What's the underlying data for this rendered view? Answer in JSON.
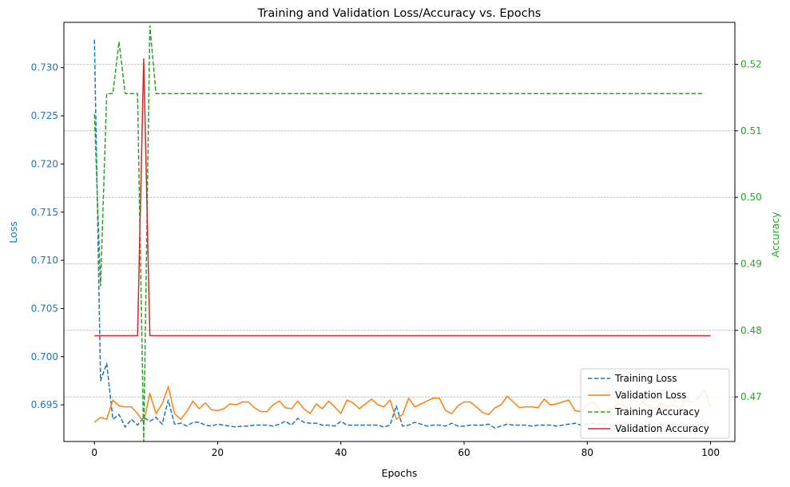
{
  "chart_data": {
    "type": "line",
    "title": "Training and Validation Loss/Accuracy vs. Epochs",
    "xlabel": "Epochs",
    "ylabel_left": "Loss",
    "ylabel_right": "Accuracy",
    "x_ticks": [
      0,
      20,
      40,
      60,
      80,
      100
    ],
    "y_left_ticks": [
      0.695,
      0.7,
      0.705,
      0.71,
      0.715,
      0.72,
      0.725,
      0.73
    ],
    "y_left_tick_labels": [
      "0.695",
      "0.700",
      "0.705",
      "0.710",
      "0.715",
      "0.720",
      "0.725",
      "0.730"
    ],
    "y_right_ticks": [
      0.47,
      0.48,
      0.49,
      0.5,
      0.51,
      0.52
    ],
    "y_right_tick_labels": [
      "0.47",
      "0.48",
      "0.49",
      "0.50",
      "0.51",
      "0.52"
    ],
    "xlim": [
      -4.95,
      103.95
    ],
    "ylim_left": [
      0.6912,
      0.7347
    ],
    "ylim_right": [
      0.4633,
      0.5263
    ],
    "grid": "right-axis horizontal",
    "legend_position": "lower-right",
    "colors": {
      "left_axis": "#1f77b4",
      "right_axis": "#2ca02c",
      "grid": "#b0b0b0"
    },
    "series": [
      {
        "name": "Training Loss",
        "axis": "left",
        "color": "#1f77b4",
        "dash": "dashed",
        "x": [
          0,
          1,
          2,
          3,
          4,
          5,
          6,
          7,
          8,
          9,
          10,
          11,
          12,
          13,
          14,
          15,
          16,
          17,
          18,
          19,
          20,
          21,
          22,
          23,
          24,
          25,
          26,
          27,
          28,
          29,
          30,
          31,
          32,
          33,
          34,
          35,
          36,
          37,
          38,
          39,
          40,
          41,
          42,
          43,
          44,
          45,
          46,
          47,
          48,
          49,
          50,
          51,
          52,
          53,
          54,
          55,
          56,
          57,
          58,
          59,
          60,
          61,
          62,
          63,
          64,
          65,
          66,
          67,
          68,
          69,
          70,
          71,
          72,
          73,
          74,
          75,
          76,
          77,
          78,
          79,
          80,
          81,
          82,
          83,
          84,
          85,
          86,
          87,
          88,
          89,
          90,
          91,
          92,
          93,
          94,
          95,
          96,
          97,
          98,
          99
        ],
        "values": [
          0.7329,
          0.6975,
          0.6993,
          0.6935,
          0.694,
          0.6927,
          0.6935,
          0.6929,
          0.6937,
          0.6933,
          0.6937,
          0.693,
          0.6955,
          0.693,
          0.6931,
          0.6928,
          0.6932,
          0.6932,
          0.6929,
          0.6928,
          0.693,
          0.6929,
          0.6928,
          0.6927,
          0.6928,
          0.6928,
          0.6929,
          0.6929,
          0.6929,
          0.6928,
          0.693,
          0.6933,
          0.6929,
          0.6936,
          0.6932,
          0.6931,
          0.6931,
          0.6929,
          0.6929,
          0.6928,
          0.6933,
          0.6929,
          0.6929,
          0.6929,
          0.6929,
          0.6929,
          0.6929,
          0.6927,
          0.6929,
          0.6949,
          0.6928,
          0.6929,
          0.6932,
          0.693,
          0.6928,
          0.6929,
          0.6929,
          0.6928,
          0.6931,
          0.6928,
          0.6928,
          0.6929,
          0.6929,
          0.6929,
          0.693,
          0.6926,
          0.6928,
          0.693,
          0.6929,
          0.6929,
          0.6929,
          0.6928,
          0.6929,
          0.6929,
          0.6929,
          0.6928,
          0.6929,
          0.693,
          0.6931,
          0.6929,
          0.693,
          0.6931,
          0.693,
          0.693,
          0.6929,
          0.6929,
          0.6929,
          0.693,
          0.6929,
          0.6929,
          0.6929,
          0.6928,
          0.693,
          0.6929,
          0.6929,
          0.6929,
          0.6928,
          0.6929,
          0.6929,
          0.6931
        ]
      },
      {
        "name": "Validation Loss",
        "axis": "left",
        "color": "#ff7f0e",
        "dash": "solid",
        "x": [
          0,
          1,
          2,
          3,
          4,
          5,
          6,
          7,
          8,
          9,
          10,
          11,
          12,
          13,
          14,
          15,
          16,
          17,
          18,
          19,
          20,
          21,
          22,
          23,
          24,
          25,
          26,
          27,
          28,
          29,
          30,
          31,
          32,
          33,
          34,
          35,
          36,
          37,
          38,
          39,
          40,
          41,
          42,
          43,
          44,
          45,
          46,
          47,
          48,
          49,
          50,
          51,
          52,
          53,
          54,
          55,
          56,
          57,
          58,
          59,
          60,
          61,
          62,
          63,
          64,
          65,
          66,
          67,
          68,
          69,
          70,
          71,
          72,
          73,
          74,
          75,
          76,
          77,
          78,
          79,
          80,
          81,
          82,
          83,
          84,
          85,
          86,
          87,
          88,
          89,
          90,
          91,
          92,
          93,
          94,
          95,
          96,
          97,
          98,
          99,
          100
        ],
        "values": [
          0.6932,
          0.6937,
          0.6935,
          0.6955,
          0.6949,
          0.6948,
          0.6948,
          0.6941,
          0.6932,
          0.6962,
          0.6941,
          0.6951,
          0.6969,
          0.6941,
          0.6935,
          0.6943,
          0.6954,
          0.6946,
          0.6952,
          0.6945,
          0.6944,
          0.6946,
          0.6951,
          0.695,
          0.6953,
          0.6953,
          0.6947,
          0.6943,
          0.6943,
          0.695,
          0.6954,
          0.6947,
          0.6946,
          0.6954,
          0.6946,
          0.6941,
          0.6951,
          0.6946,
          0.6954,
          0.6948,
          0.6941,
          0.6955,
          0.6952,
          0.6946,
          0.6951,
          0.6956,
          0.695,
          0.6948,
          0.6955,
          0.6935,
          0.694,
          0.6957,
          0.6948,
          0.6951,
          0.6954,
          0.6957,
          0.6957,
          0.6944,
          0.6941,
          0.6949,
          0.6953,
          0.6953,
          0.6948,
          0.6942,
          0.694,
          0.6947,
          0.695,
          0.6959,
          0.6953,
          0.6947,
          0.6948,
          0.6948,
          0.6947,
          0.6956,
          0.695,
          0.6951,
          0.6953,
          0.6955,
          0.6944,
          0.6943,
          0.695,
          0.6953,
          0.6945,
          0.6942,
          0.6947,
          0.6951,
          0.695,
          0.6943,
          0.6947,
          0.6953,
          0.6948,
          0.6946,
          0.6952,
          0.6948,
          0.695,
          0.6946,
          0.6954,
          0.6953,
          0.6957,
          0.6966,
          0.6947
        ]
      },
      {
        "name": "Training Accuracy",
        "axis": "right",
        "color": "#2ca02c",
        "dash": "dashed",
        "x": [
          0,
          1,
          2,
          3,
          4,
          5,
          6,
          7,
          8,
          9,
          10,
          11,
          12,
          13,
          14,
          15,
          16,
          17,
          18,
          19,
          20,
          21,
          22,
          23,
          24,
          25,
          26,
          27,
          28,
          29,
          30,
          31,
          32,
          33,
          34,
          35,
          36,
          37,
          38,
          39,
          40,
          41,
          42,
          43,
          44,
          45,
          46,
          47,
          48,
          49,
          50,
          51,
          52,
          53,
          54,
          55,
          56,
          57,
          58,
          59,
          60,
          61,
          62,
          63,
          64,
          65,
          66,
          67,
          68,
          69,
          70,
          71,
          72,
          73,
          74,
          75,
          76,
          77,
          78,
          79,
          80,
          81,
          82,
          83,
          84,
          85,
          86,
          87,
          88,
          89,
          90,
          91,
          92,
          93,
          94,
          95,
          96,
          97,
          98,
          99
        ],
        "values": [
          0.5125,
          0.4867,
          0.5156,
          0.5156,
          0.5234,
          0.5156,
          0.5156,
          0.5156,
          0.4633,
          0.5258,
          0.5156,
          0.5156,
          0.5156,
          0.5156,
          0.5156,
          0.5156,
          0.5156,
          0.5156,
          0.5156,
          0.5156,
          0.5156,
          0.5156,
          0.5156,
          0.5156,
          0.5156,
          0.5156,
          0.5156,
          0.5156,
          0.5156,
          0.5156,
          0.5156,
          0.5156,
          0.5156,
          0.5156,
          0.5156,
          0.5156,
          0.5156,
          0.5156,
          0.5156,
          0.5156,
          0.5156,
          0.5156,
          0.5156,
          0.5156,
          0.5156,
          0.5156,
          0.5156,
          0.5156,
          0.5156,
          0.5156,
          0.5156,
          0.5156,
          0.5156,
          0.5156,
          0.5156,
          0.5156,
          0.5156,
          0.5156,
          0.5156,
          0.5156,
          0.5156,
          0.5156,
          0.5156,
          0.5156,
          0.5156,
          0.5156,
          0.5156,
          0.5156,
          0.5156,
          0.5156,
          0.5156,
          0.5156,
          0.5156,
          0.5156,
          0.5156,
          0.5156,
          0.5156,
          0.5156,
          0.5156,
          0.5156,
          0.5156,
          0.5156,
          0.5156,
          0.5156,
          0.5156,
          0.5156,
          0.5156,
          0.5156,
          0.5156,
          0.5156,
          0.5156,
          0.5156,
          0.5156,
          0.5156,
          0.5156,
          0.5156,
          0.5156,
          0.5156,
          0.5156,
          0.5156
        ]
      },
      {
        "name": "Validation Accuracy",
        "axis": "right",
        "color": "#d62728",
        "dash": "solid",
        "x": [
          0,
          1,
          2,
          3,
          4,
          5,
          6,
          7,
          8,
          9,
          10,
          11,
          12,
          13,
          14,
          15,
          16,
          17,
          18,
          19,
          20,
          21,
          22,
          23,
          24,
          25,
          26,
          27,
          28,
          29,
          30,
          31,
          32,
          33,
          34,
          35,
          36,
          37,
          38,
          39,
          40,
          41,
          42,
          43,
          44,
          45,
          46,
          47,
          48,
          49,
          50,
          51,
          52,
          53,
          54,
          55,
          56,
          57,
          58,
          59,
          60,
          61,
          62,
          63,
          64,
          65,
          66,
          67,
          68,
          69,
          70,
          71,
          72,
          73,
          74,
          75,
          76,
          77,
          78,
          79,
          80,
          81,
          82,
          83,
          84,
          85,
          86,
          87,
          88,
          89,
          90,
          91,
          92,
          93,
          94,
          95,
          96,
          97,
          98,
          99,
          100
        ],
        "values": [
          0.4792,
          0.4792,
          0.4792,
          0.4792,
          0.4792,
          0.4792,
          0.4792,
          0.4792,
          0.5208,
          0.4792,
          0.4792,
          0.4792,
          0.4792,
          0.4792,
          0.4792,
          0.4792,
          0.4792,
          0.4792,
          0.4792,
          0.4792,
          0.4792,
          0.4792,
          0.4792,
          0.4792,
          0.4792,
          0.4792,
          0.4792,
          0.4792,
          0.4792,
          0.4792,
          0.4792,
          0.4792,
          0.4792,
          0.4792,
          0.4792,
          0.4792,
          0.4792,
          0.4792,
          0.4792,
          0.4792,
          0.4792,
          0.4792,
          0.4792,
          0.4792,
          0.4792,
          0.4792,
          0.4792,
          0.4792,
          0.4792,
          0.4792,
          0.4792,
          0.4792,
          0.4792,
          0.4792,
          0.4792,
          0.4792,
          0.4792,
          0.4792,
          0.4792,
          0.4792,
          0.4792,
          0.4792,
          0.4792,
          0.4792,
          0.4792,
          0.4792,
          0.4792,
          0.4792,
          0.4792,
          0.4792,
          0.4792,
          0.4792,
          0.4792,
          0.4792,
          0.4792,
          0.4792,
          0.4792,
          0.4792,
          0.4792,
          0.4792,
          0.4792,
          0.4792,
          0.4792,
          0.4792,
          0.4792,
          0.4792,
          0.4792,
          0.4792,
          0.4792,
          0.4792,
          0.4792,
          0.4792,
          0.4792,
          0.4792,
          0.4792,
          0.4792,
          0.4792,
          0.4792,
          0.4792,
          0.4792,
          0.4792
        ]
      }
    ]
  }
}
